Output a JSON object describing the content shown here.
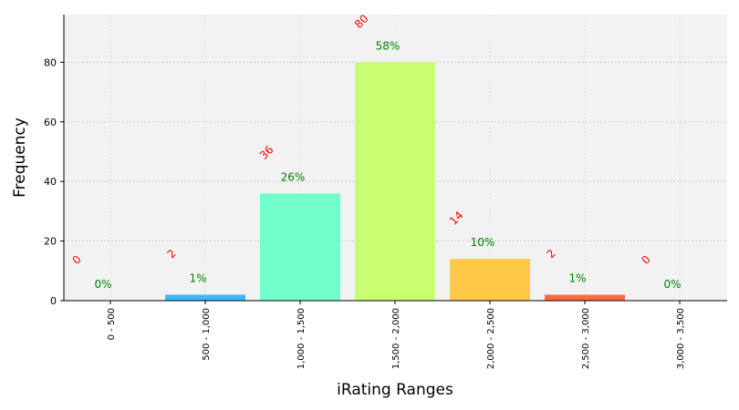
{
  "chart_data": {
    "type": "bar",
    "categories": [
      "0 - 500",
      "500 - 1,000",
      "1,000 - 1,500",
      "1,500 - 2,000",
      "2,000 - 2,500",
      "2,500 - 3,000",
      "3,000 - 3,500"
    ],
    "values": [
      0,
      2,
      36,
      80,
      14,
      2,
      0
    ],
    "percent_labels": [
      "0%",
      "1%",
      "26%",
      "58%",
      "10%",
      "1%",
      "0%"
    ],
    "count_labels": [
      "0",
      "2",
      "36",
      "80",
      "14",
      "2",
      "0"
    ],
    "bar_colors": [
      "#4d4dff",
      "#3fb8ff",
      "#72ffcc",
      "#c8ff6e",
      "#ffc948",
      "#ff6a3e",
      "#7f0000"
    ],
    "title": "",
    "xlabel": "iRating Ranges",
    "ylabel": "Frequency",
    "ylim": [
      0,
      96
    ],
    "yticks": [
      0,
      20,
      40,
      60,
      80
    ],
    "grid": true,
    "plot_background": "#f2f2f2",
    "count_label_color": "#ff0000",
    "percent_label_color": "#008000"
  }
}
